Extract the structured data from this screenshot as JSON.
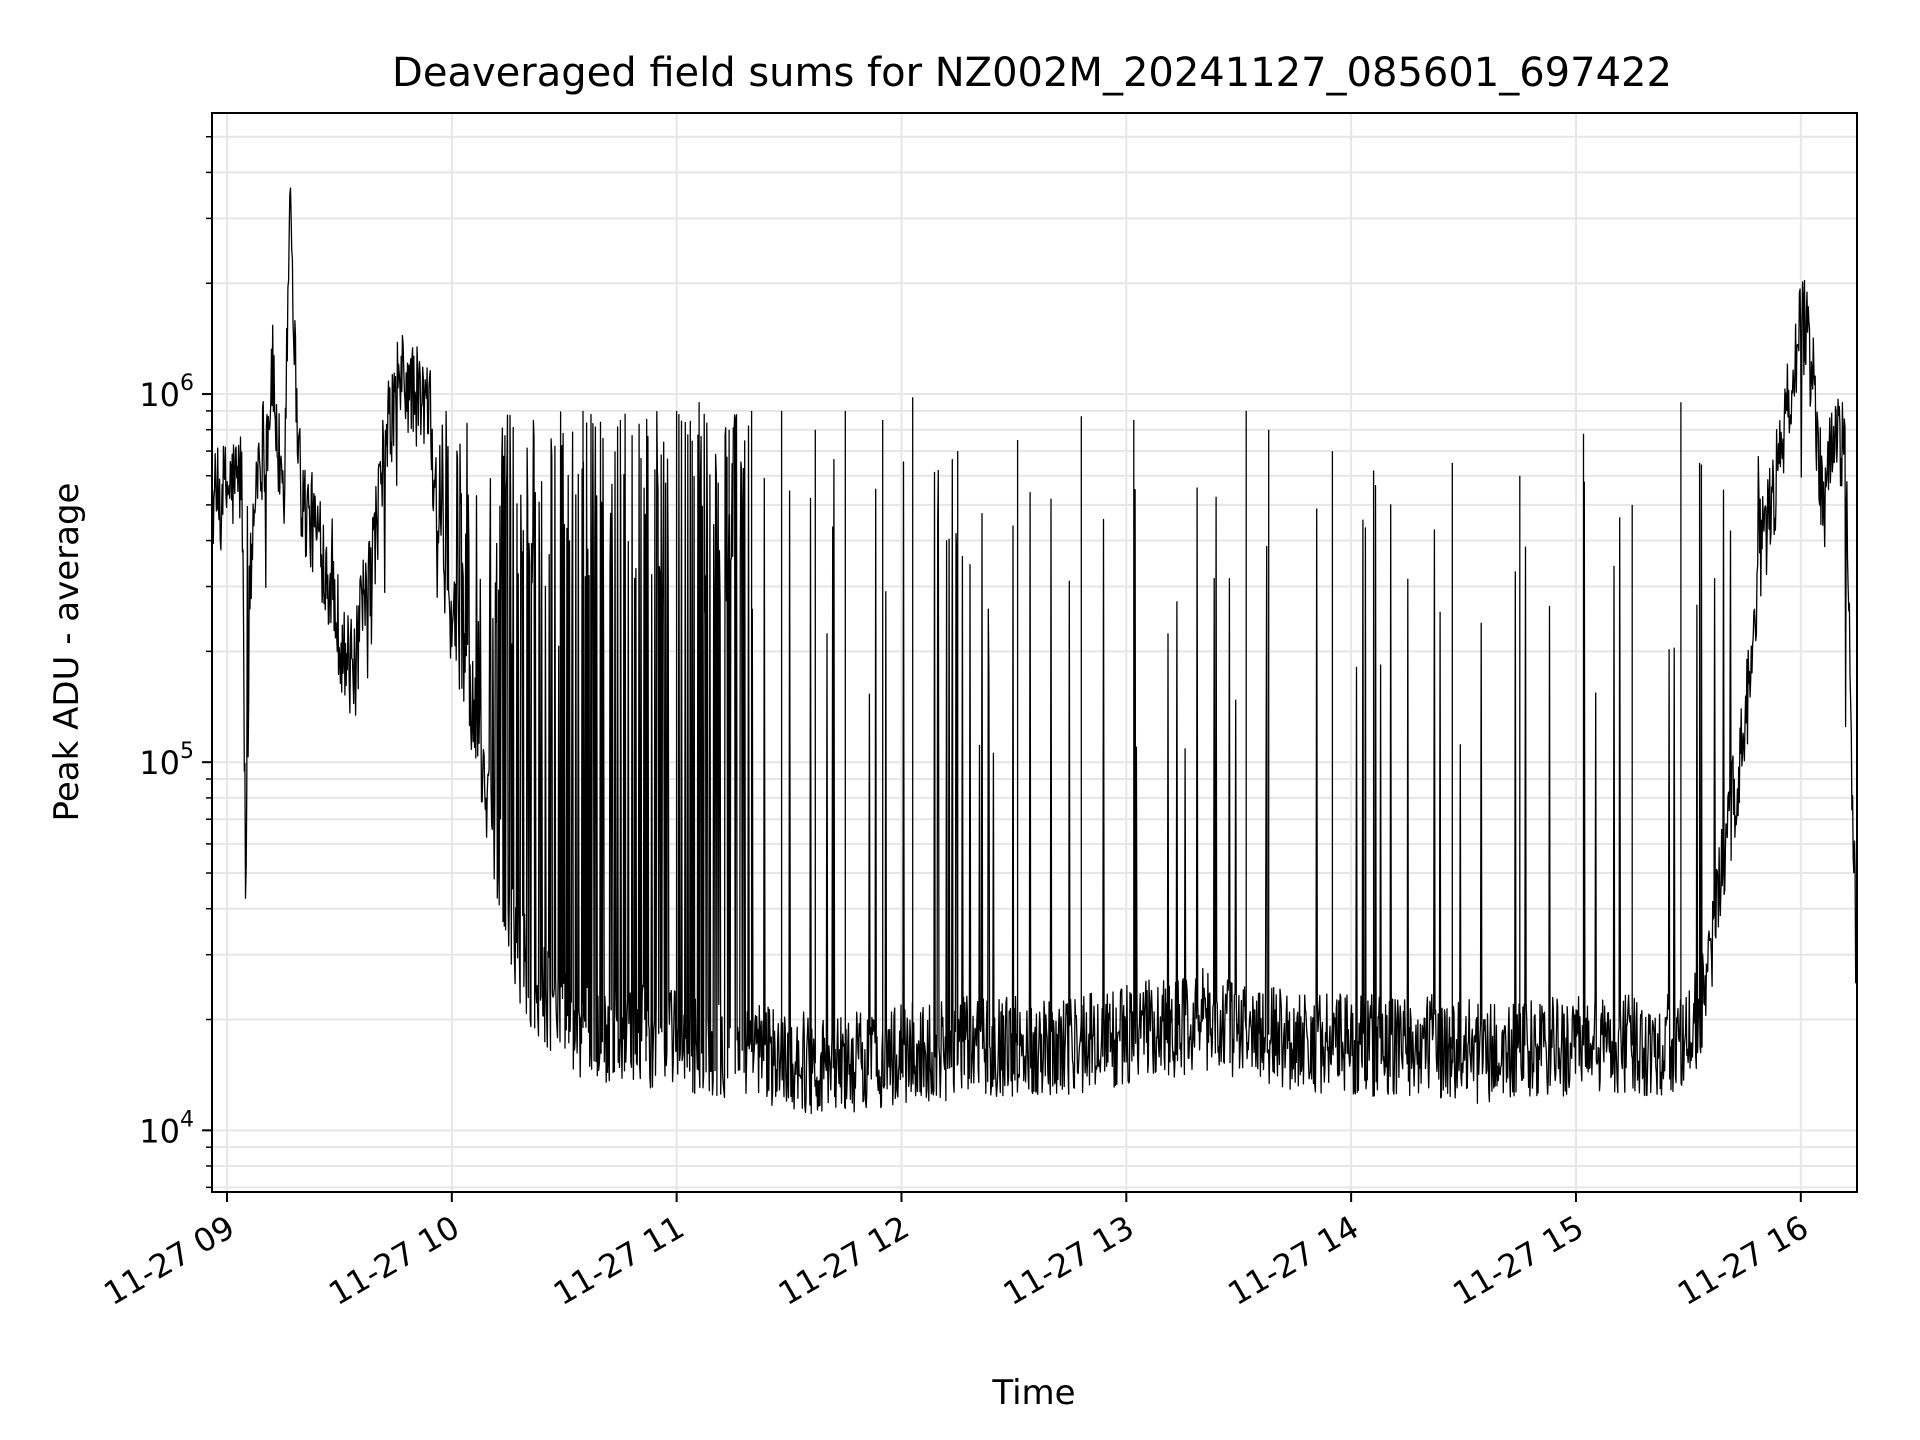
{
  "chart_data": {
    "type": "line",
    "title": "Deaveraged field sums for NZ002M_20241127_085601_697422",
    "xlabel": "Time",
    "ylabel": "Peak ADU - average",
    "yscale": "log",
    "ylim": [
      6800,
      5800000
    ],
    "xlim": [
      "2024-11-27 08:56",
      "2024-11-27 16:15"
    ],
    "grid": true,
    "line_color": "#000000",
    "x_ticks": [
      {
        "value": "2024-11-27 09:00",
        "label": "11-27 09"
      },
      {
        "value": "2024-11-27 10:00",
        "label": "11-27 10"
      },
      {
        "value": "2024-11-27 11:00",
        "label": "11-27 11"
      },
      {
        "value": "2024-11-27 12:00",
        "label": "11-27 12"
      },
      {
        "value": "2024-11-27 13:00",
        "label": "11-27 13"
      },
      {
        "value": "2024-11-27 14:00",
        "label": "11-27 14"
      },
      {
        "value": "2024-11-27 15:00",
        "label": "11-27 15"
      },
      {
        "value": "2024-11-27 16:00",
        "label": "11-27 16"
      }
    ],
    "y_ticks": [
      {
        "value": 10000,
        "base": "10",
        "exp": "4"
      },
      {
        "value": 100000,
        "base": "10",
        "exp": "5"
      },
      {
        "value": 1000000,
        "base": "10",
        "exp": "6"
      }
    ],
    "series": [
      {
        "x": [
          "2024-11-27 08:56",
          "2024-11-27 09:00",
          "2024-11-27 09:04",
          "2024-11-27 09:05",
          "2024-11-27 09:06",
          "2024-11-27 09:08",
          "2024-11-27 09:11",
          "2024-11-27 09:12",
          "2024-11-27 09:15",
          "2024-11-27 09:17",
          "2024-11-27 09:18",
          "2024-11-27 09:20",
          "2024-11-27 09:24",
          "2024-11-27 09:28",
          "2024-11-27 09:31",
          "2024-11-27 09:34",
          "2024-11-27 09:36",
          "2024-11-27 09:38",
          "2024-11-27 09:42",
          "2024-11-27 09:46",
          "2024-11-27 09:50",
          "2024-11-27 09:54",
          "2024-11-27 09:58",
          "2024-11-27 10:05",
          "2024-11-27 10:12",
          "2024-11-27 10:18",
          "2024-11-27 10:22",
          "2024-11-27 10:30",
          "2024-11-27 10:40",
          "2024-11-27 10:55",
          "2024-11-27 11:10",
          "2024-11-27 11:25",
          "2024-11-27 11:40",
          "2024-11-27 12:00",
          "2024-11-27 12:20",
          "2024-11-27 12:40",
          "2024-11-27 13:00",
          "2024-11-27 13:20",
          "2024-11-27 13:40",
          "2024-11-27 14:00",
          "2024-11-27 14:20",
          "2024-11-27 14:40",
          "2024-11-27 15:00",
          "2024-11-27 15:15",
          "2024-11-27 15:30",
          "2024-11-27 15:35",
          "2024-11-27 15:40",
          "2024-11-27 15:45",
          "2024-11-27 15:50",
          "2024-11-27 15:55",
          "2024-11-27 16:00",
          "2024-11-27 16:03",
          "2024-11-27 16:06",
          "2024-11-27 16:09",
          "2024-11-27 16:12",
          "2024-11-27 16:15"
        ],
        "y": [
          500000,
          550000,
          600000,
          45000,
          280000,
          650000,
          800000,
          1200000,
          450000,
          4300000,
          1300000,
          500000,
          420000,
          300000,
          200000,
          170000,
          250000,
          300000,
          700000,
          1100000,
          1000000,
          900000,
          300000,
          150000,
          60000,
          30000,
          25000,
          20000,
          18000,
          18000,
          17000,
          16000,
          15000,
          16000,
          17000,
          17000,
          18000,
          20000,
          18000,
          17000,
          17000,
          16000,
          17000,
          17000,
          17000,
          25000,
          60000,
          120000,
          400000,
          700000,
          1700000,
          1200000,
          500000,
          800000,
          700000,
          20000
        ],
        "spikes": [
          [
            "2024-11-27 10:35",
            900000
          ],
          [
            "2024-11-27 10:45",
            850000
          ],
          [
            "2024-11-27 10:52",
            800000
          ],
          [
            "2024-11-27 11:00",
            900000
          ],
          [
            "2024-11-27 11:06",
            950000
          ],
          [
            "2024-11-27 11:14",
            800000
          ],
          [
            "2024-11-27 11:20",
            900000
          ],
          [
            "2024-11-27 11:28",
            900000
          ],
          [
            "2024-11-27 11:37",
            800000
          ],
          [
            "2024-11-27 11:45",
            900000
          ],
          [
            "2024-11-27 11:55",
            850000
          ],
          [
            "2024-11-27 12:03",
            980000
          ],
          [
            "2024-11-27 12:15",
            700000
          ],
          [
            "2024-11-27 12:31",
            750000
          ],
          [
            "2024-11-27 12:48",
            870000
          ],
          [
            "2024-11-27 13:02",
            850000
          ],
          [
            "2024-11-27 13:32",
            900000
          ],
          [
            "2024-11-27 13:38",
            800000
          ],
          [
            "2024-11-27 13:55",
            700000
          ],
          [
            "2024-11-27 14:06",
            620000
          ],
          [
            "2024-11-27 14:27",
            650000
          ],
          [
            "2024-11-27 14:45",
            600000
          ],
          [
            "2024-11-27 15:02",
            780000
          ],
          [
            "2024-11-27 15:15",
            500000
          ],
          [
            "2024-11-27 15:28",
            950000
          ],
          [
            "2024-11-27 15:33",
            650000
          ]
        ]
      }
    ]
  }
}
